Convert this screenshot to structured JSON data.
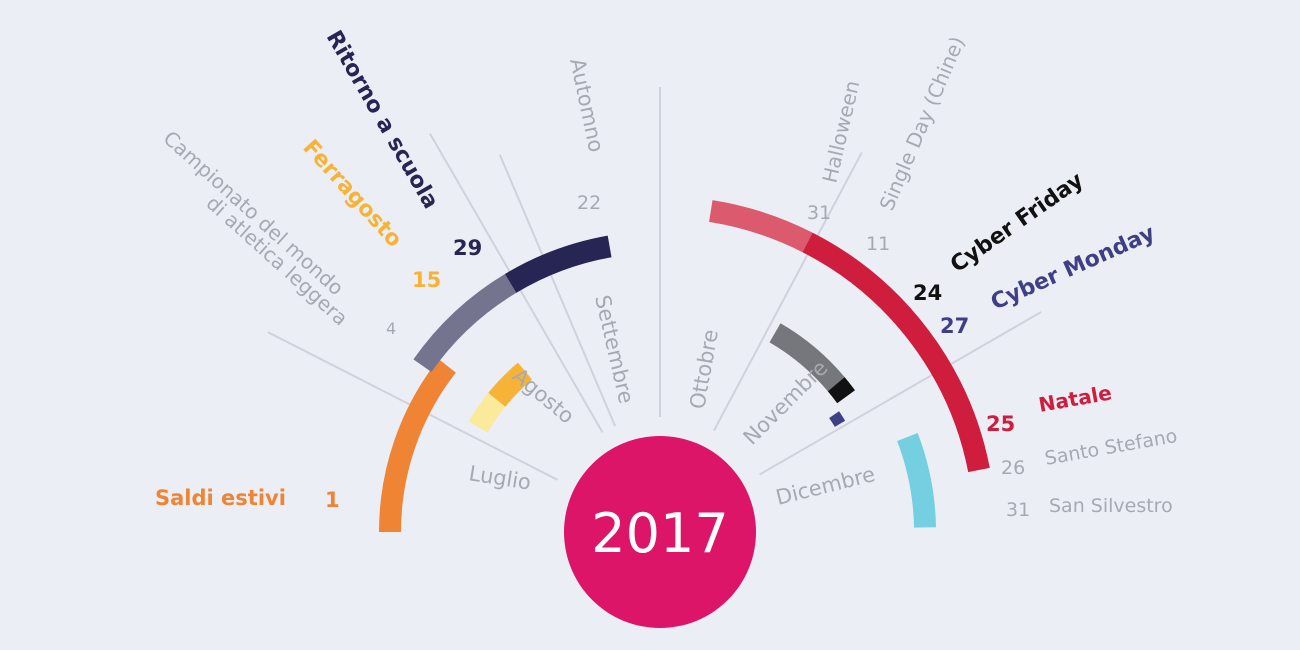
{
  "colors": {
    "background": "#eceef6",
    "center": "#dc1568",
    "month": "#a7a9b2",
    "divider": "#cfd2dc"
  },
  "year": "2017",
  "months": [
    {
      "name": "Luglio"
    },
    {
      "name": "Agosto"
    },
    {
      "name": "Settembre"
    },
    {
      "name": "Ottobre"
    },
    {
      "name": "Novembre"
    },
    {
      "name": "Dicembre"
    }
  ],
  "seasons": [
    {
      "name": "Automno",
      "day": "22"
    }
  ],
  "events": [
    {
      "name": "Saldi estivi",
      "day": "1",
      "color": "#ee8434"
    },
    {
      "name": "Campionato del mondo",
      "name2": "di atletica leggera",
      "day": "4",
      "color": "#a7a9b2"
    },
    {
      "name": "Ferragosto",
      "day": "15",
      "color": "#f7b337"
    },
    {
      "name": "Ritorno a scuola",
      "day": "29",
      "color": "#262553"
    },
    {
      "name": "Halloween",
      "day": "31",
      "color": "#a7a9b2"
    },
    {
      "name": "Single Day (Chine)",
      "day": "11",
      "color": "#a7a9b2"
    },
    {
      "name": "Cyber Friday",
      "day": "24",
      "color": "#111111"
    },
    {
      "name": "Cyber Monday",
      "day": "27",
      "color": "#3f3f86"
    },
    {
      "name": "Natale",
      "day": "25",
      "color": "#cf1d3e"
    },
    {
      "name": "Santo Stefano",
      "day": "26",
      "color": "#a7a9b2"
    },
    {
      "name": "San Silvestro",
      "day": "31",
      "color": "#a7a9b2"
    }
  ],
  "arc_colors": {
    "saldi": "#ee8434",
    "ferragosto_light": "#fbea9c",
    "ferragosto": "#f7b337",
    "scuola_light": "#75748f",
    "scuola": "#262553",
    "xmas_light": "#dc5a6e",
    "xmas": "#cf1d3e",
    "grey": "#76777c",
    "friday": "#111111",
    "monday": "#3f3f86",
    "cyan": "#74cfe0"
  }
}
